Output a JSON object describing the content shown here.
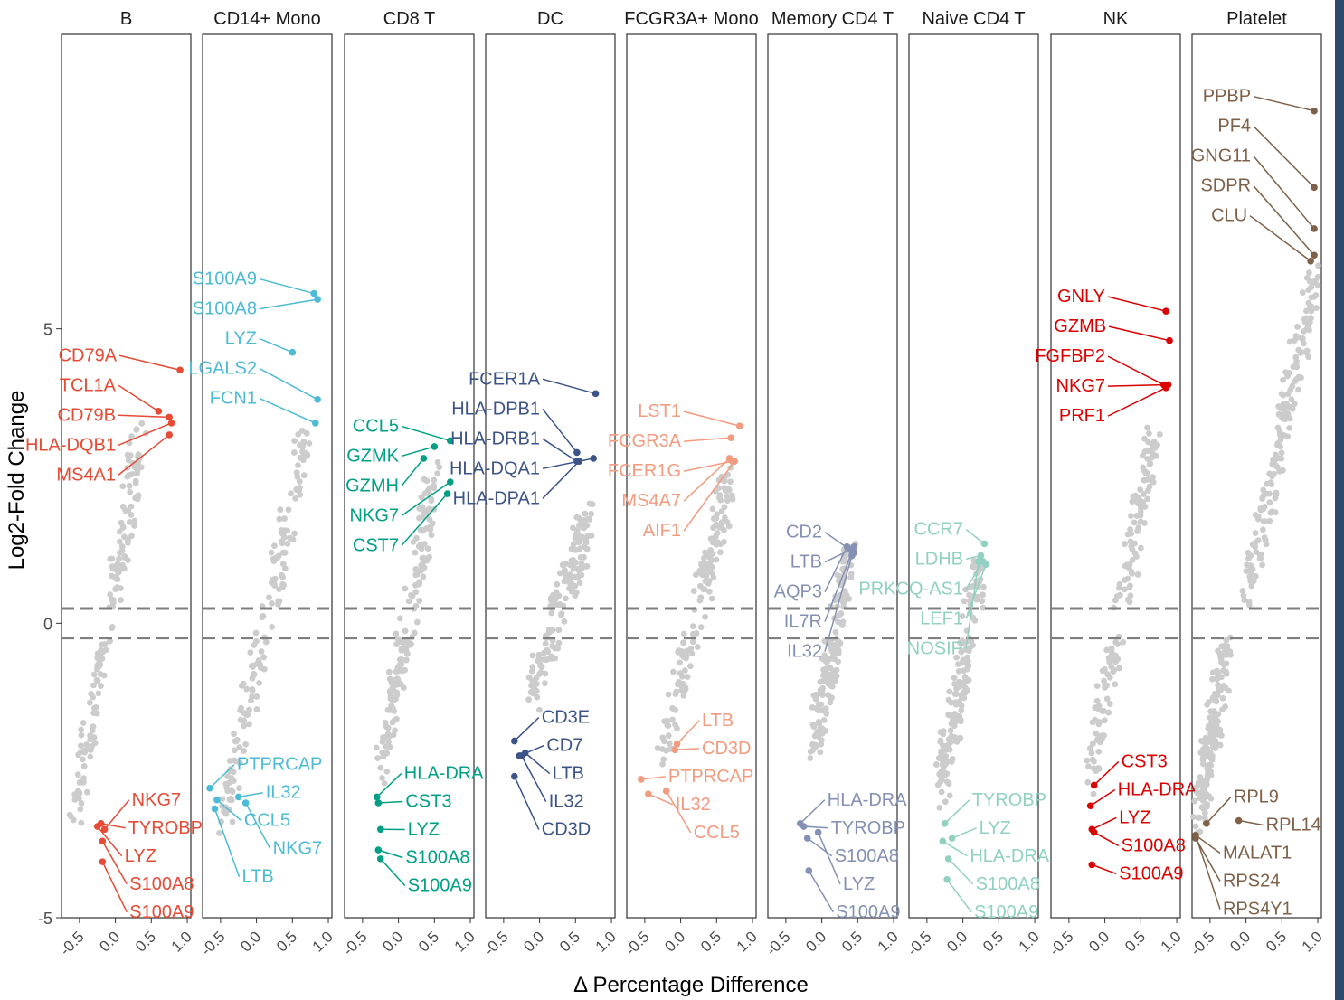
{
  "chart_data": {
    "type": "scatter",
    "title": "",
    "xlabel": "Δ Percentage Difference",
    "ylabel": "Log2-Fold Change",
    "xlim": [
      -0.75,
      1.05
    ],
    "ylim": [
      -5,
      10
    ],
    "x_ticks": [
      -0.5,
      0.0,
      0.5,
      1.0
    ],
    "x_tick_labels": [
      "-0.5",
      "0.0",
      "0.5",
      "1.0"
    ],
    "y_ticks": [
      -5,
      0,
      5
    ],
    "y_tick_labels": [
      "-5",
      "0",
      "5"
    ],
    "threshold_lines": [
      0.25,
      -0.25
    ],
    "background_color": "#cccccc",
    "panels": [
      {
        "name": "B",
        "color": "#e64b35",
        "cloud": [
          {
            "x0": -0.55,
            "x1": 0.35,
            "y0": -3.2,
            "y1": 3.2
          }
        ],
        "genes": [
          {
            "label": "CD79A",
            "x": 0.9,
            "y": 4.3
          },
          {
            "label": "TCL1A",
            "x": 0.6,
            "y": 3.6
          },
          {
            "label": "CD79B",
            "x": 0.75,
            "y": 3.5
          },
          {
            "label": "HLA-DQB1",
            "x": 0.78,
            "y": 3.4
          },
          {
            "label": "MS4A1",
            "x": 0.75,
            "y": 3.2
          },
          {
            "label": "NKG7",
            "x": -0.15,
            "y": -3.5
          },
          {
            "label": "TYROBP",
            "x": -0.2,
            "y": -3.4
          },
          {
            "label": "LYZ",
            "x": -0.25,
            "y": -3.45
          },
          {
            "label": "S100A8",
            "x": -0.18,
            "y": -3.7
          },
          {
            "label": "S100A9",
            "x": -0.18,
            "y": -4.05
          }
        ]
      },
      {
        "name": "CD14+ Mono",
        "color": "#4dbbd5",
        "cloud": [
          {
            "x0": -0.45,
            "x1": 0.7,
            "y0": -3.2,
            "y1": 3.2
          }
        ],
        "genes": [
          {
            "label": "S100A9",
            "x": 0.8,
            "y": 5.6
          },
          {
            "label": "S100A8",
            "x": 0.85,
            "y": 5.5
          },
          {
            "label": "LYZ",
            "x": 0.5,
            "y": 4.6
          },
          {
            "label": "LGALS2",
            "x": 0.85,
            "y": 3.8
          },
          {
            "label": "FCN1",
            "x": 0.82,
            "y": 3.4
          },
          {
            "label": "PTPRCAP",
            "x": -0.65,
            "y": -2.8
          },
          {
            "label": "IL32",
            "x": -0.25,
            "y": -2.95
          },
          {
            "label": "CCL5",
            "x": -0.55,
            "y": -3.0
          },
          {
            "label": "NKG7",
            "x": -0.15,
            "y": -3.05
          },
          {
            "label": "LTB",
            "x": -0.58,
            "y": -3.15
          }
        ]
      },
      {
        "name": "CD8 T",
        "color": "#00a087",
        "cloud": [
          {
            "x0": -0.25,
            "x1": 0.5,
            "y0": -2.5,
            "y1": 2.5
          }
        ],
        "genes": [
          {
            "label": "CCL5",
            "x": 0.72,
            "y": 3.1
          },
          {
            "label": "GZMK",
            "x": 0.5,
            "y": 3.0
          },
          {
            "label": "GZMH",
            "x": 0.35,
            "y": 2.8
          },
          {
            "label": "NKG7",
            "x": 0.72,
            "y": 2.4
          },
          {
            "label": "CST7",
            "x": 0.68,
            "y": 2.2
          },
          {
            "label": "HLA-DRA",
            "x": -0.3,
            "y": -2.95
          },
          {
            "label": "CST3",
            "x": -0.28,
            "y": -3.05
          },
          {
            "label": "LYZ",
            "x": -0.25,
            "y": -3.5
          },
          {
            "label": "S100A8",
            "x": -0.28,
            "y": -3.85
          },
          {
            "label": "S100A9",
            "x": -0.25,
            "y": -4.0
          }
        ]
      },
      {
        "name": "DC",
        "color": "#3c5488",
        "cloud": [
          {
            "x0": -0.1,
            "x1": 0.7,
            "y0": -1.2,
            "y1": 1.8
          }
        ],
        "genes": [
          {
            "label": "FCER1A",
            "x": 0.78,
            "y": 3.9
          },
          {
            "label": "HLA-DPB1",
            "x": 0.52,
            "y": 2.9
          },
          {
            "label": "HLA-DRB1",
            "x": 0.52,
            "y": 2.75
          },
          {
            "label": "HLA-DQA1",
            "x": 0.75,
            "y": 2.8
          },
          {
            "label": "HLA-DPA1",
            "x": 0.55,
            "y": 2.75
          },
          {
            "label": "CD3E",
            "x": -0.35,
            "y": -2.0
          },
          {
            "label": "CD7",
            "x": -0.28,
            "y": -2.25
          },
          {
            "label": "LTB",
            "x": -0.2,
            "y": -2.2
          },
          {
            "label": "IL32",
            "x": -0.25,
            "y": -2.25
          },
          {
            "label": "CD3D",
            "x": -0.35,
            "y": -2.6
          }
        ]
      },
      {
        "name": "FCGR3A+ Mono",
        "color": "#f39b7f",
        "cloud": [
          {
            "x0": -0.25,
            "x1": 0.7,
            "y0": -2.2,
            "y1": 2.6
          }
        ],
        "genes": [
          {
            "label": "LST1",
            "x": 0.82,
            "y": 3.35
          },
          {
            "label": "FCGR3A",
            "x": 0.7,
            "y": 3.15
          },
          {
            "label": "FCER1G",
            "x": 0.72,
            "y": 2.75
          },
          {
            "label": "MS4A7",
            "x": 0.68,
            "y": 2.8
          },
          {
            "label": "AIF1",
            "x": 0.75,
            "y": 2.75
          },
          {
            "label": "LTB",
            "x": -0.05,
            "y": -2.05
          },
          {
            "label": "CD3D",
            "x": -0.08,
            "y": -2.15
          },
          {
            "label": "PTPRCAP",
            "x": -0.55,
            "y": -2.65
          },
          {
            "label": "IL32",
            "x": -0.45,
            "y": -2.9
          },
          {
            "label": "CCL5",
            "x": -0.2,
            "y": -2.85
          }
        ]
      },
      {
        "name": "Memory CD4 T",
        "color": "#8491b4",
        "cloud": [
          {
            "x0": -0.1,
            "x1": 0.4,
            "y0": -2.0,
            "y1": 1.0
          }
        ],
        "genes": [
          {
            "label": "CD2",
            "x": 0.45,
            "y": 1.2
          },
          {
            "label": "LTB",
            "x": 0.4,
            "y": 1.25
          },
          {
            "label": "AQP3",
            "x": 0.35,
            "y": 1.3
          },
          {
            "label": "IL7R",
            "x": 0.45,
            "y": 1.3
          },
          {
            "label": "IL32",
            "x": 0.42,
            "y": 1.15
          },
          {
            "label": "HLA-DRA",
            "x": -0.3,
            "y": -3.4
          },
          {
            "label": "TYROBP",
            "x": -0.25,
            "y": -3.45
          },
          {
            "label": "S100A8",
            "x": -0.2,
            "y": -3.65
          },
          {
            "label": "LYZ",
            "x": -0.05,
            "y": -3.55
          },
          {
            "label": "S100A9",
            "x": -0.18,
            "y": -4.2
          }
        ]
      },
      {
        "name": "Naive CD4 T",
        "color": "#91d1c2",
        "cloud": [
          {
            "x0": -0.3,
            "x1": 0.25,
            "y0": -2.8,
            "y1": 1.0
          }
        ],
        "genes": [
          {
            "label": "CCR7",
            "x": 0.3,
            "y": 1.35
          },
          {
            "label": "LDHB",
            "x": 0.25,
            "y": 1.15
          },
          {
            "label": "PRKCQ-AS1",
            "x": 0.28,
            "y": 1.05
          },
          {
            "label": "LEF1",
            "x": 0.32,
            "y": 1.0
          },
          {
            "label": "NOSIP",
            "x": 0.22,
            "y": 1.05
          },
          {
            "label": "TYROBP",
            "x": -0.25,
            "y": -3.4
          },
          {
            "label": "LYZ",
            "x": -0.15,
            "y": -3.65
          },
          {
            "label": "HLA-DRA",
            "x": -0.28,
            "y": -3.7
          },
          {
            "label": "S100A8",
            "x": -0.2,
            "y": -4.0
          },
          {
            "label": "S100A9",
            "x": -0.22,
            "y": -4.35
          }
        ]
      },
      {
        "name": "NK",
        "color": "#dc0000",
        "cloud": [
          {
            "x0": -0.2,
            "x1": 0.7,
            "y0": -2.5,
            "y1": 3.2
          }
        ],
        "genes": [
          {
            "label": "GNLY",
            "x": 0.85,
            "y": 5.3
          },
          {
            "label": "GZMB",
            "x": 0.9,
            "y": 4.8
          },
          {
            "label": "FGFBP2",
            "x": 0.82,
            "y": 4.05
          },
          {
            "label": "NKG7",
            "x": 0.88,
            "y": 4.05
          },
          {
            "label": "PRF1",
            "x": 0.85,
            "y": 4.0
          },
          {
            "label": "CST3",
            "x": -0.15,
            "y": -2.75
          },
          {
            "label": "HLA-DRA",
            "x": -0.2,
            "y": -3.1
          },
          {
            "label": "LYZ",
            "x": -0.18,
            "y": -3.5
          },
          {
            "label": "S100A8",
            "x": -0.15,
            "y": -3.55
          },
          {
            "label": "S100A9",
            "x": -0.18,
            "y": -4.1
          }
        ]
      },
      {
        "name": "Platelet",
        "color": "#7e6148",
        "cloud": [
          {
            "x0": -0.65,
            "x1": -0.3,
            "y0": -3.2,
            "y1": -0.6
          },
          {
            "x0": 0.0,
            "x1": 0.95,
            "y0": 0.4,
            "y1": 5.9
          }
        ],
        "genes": [
          {
            "label": "PPBP",
            "x": 0.95,
            "y": 8.7
          },
          {
            "label": "PF4",
            "x": 0.95,
            "y": 7.4
          },
          {
            "label": "GNG11",
            "x": 0.95,
            "y": 6.7
          },
          {
            "label": "SDPR",
            "x": 0.95,
            "y": 6.25
          },
          {
            "label": "CLU",
            "x": 0.9,
            "y": 6.15
          },
          {
            "label": "RPL9",
            "x": -0.55,
            "y": -3.4
          },
          {
            "label": "RPL14",
            "x": -0.1,
            "y": -3.35
          },
          {
            "label": "MALAT1",
            "x": -0.7,
            "y": -3.6
          },
          {
            "label": "RPS24",
            "x": -0.7,
            "y": -3.65
          },
          {
            "label": "RPS4Y1",
            "x": -0.7,
            "y": -3.6
          }
        ]
      }
    ]
  }
}
